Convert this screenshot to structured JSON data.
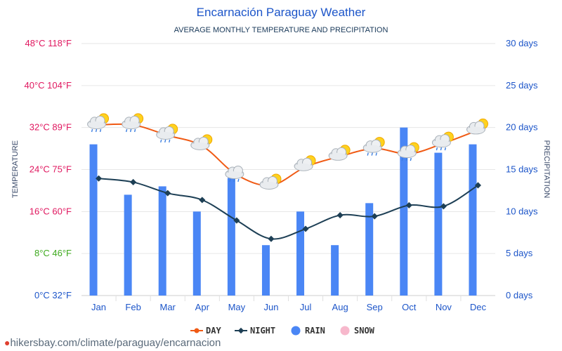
{
  "chart_data": {
    "type": "bar+line",
    "title": "Encarnación Paraguay Weather",
    "subtitle": "AVERAGE MONTHLY TEMPERATURE AND PRECIPITATION",
    "ylabel_left": "TEMPERATURE",
    "ylabel_right": "PRECIPITATION",
    "categories": [
      "Jan",
      "Feb",
      "Mar",
      "Apr",
      "May",
      "Jun",
      "Jul",
      "Aug",
      "Sep",
      "Oct",
      "Nov",
      "Dec"
    ],
    "left_ticks": [
      {
        "value": 48,
        "label": "48°C 118°F",
        "color": "#e0175f"
      },
      {
        "value": 40,
        "label": "40°C 104°F",
        "color": "#e0175f"
      },
      {
        "value": 32,
        "label": "32°C 89°F",
        "color": "#e0175f"
      },
      {
        "value": 24,
        "label": "24°C 75°F",
        "color": "#e0175f"
      },
      {
        "value": 16,
        "label": "16°C 60°F",
        "color": "#e0175f"
      },
      {
        "value": 8,
        "label": "8°C 46°F",
        "color": "#3eaa1e"
      },
      {
        "value": 0,
        "label": "0°C 32°F",
        "color": "#1c55c9"
      }
    ],
    "right_ticks": [
      {
        "value": 30,
        "label": "30 days"
      },
      {
        "value": 25,
        "label": "25 days"
      },
      {
        "value": 20,
        "label": "20 days"
      },
      {
        "value": 15,
        "label": "15 days"
      },
      {
        "value": 10,
        "label": "10 days"
      },
      {
        "value": 5,
        "label": "5 days"
      },
      {
        "value": 0,
        "label": "0 days"
      }
    ],
    "temp_range": [
      0,
      48
    ],
    "precip_range": [
      0,
      30
    ],
    "series": [
      {
        "name": "DAY",
        "kind": "line",
        "unit": "°C",
        "color": "#f05a14",
        "values": [
          32.5,
          32.5,
          30.5,
          28.5,
          23,
          21,
          24.5,
          26.5,
          28,
          27,
          29,
          31.5
        ]
      },
      {
        "name": "NIGHT",
        "kind": "line",
        "unit": "°C",
        "color": "#1d3f55",
        "values": [
          22.3,
          21.6,
          19.5,
          18.2,
          14.3,
          10.8,
          12.7,
          15.3,
          15.1,
          17.2,
          17,
          21
        ]
      },
      {
        "name": "RAIN",
        "kind": "bar",
        "unit": "days",
        "color": "#4a86f5",
        "values": [
          18,
          12,
          13,
          10,
          14,
          6,
          10,
          6,
          11,
          20,
          17,
          18
        ]
      },
      {
        "name": "SNOW",
        "kind": "bar",
        "unit": "days",
        "color": "#f7b8cc",
        "values": [
          0,
          0,
          0,
          0,
          0,
          0,
          0,
          0,
          0,
          0,
          0,
          0
        ]
      }
    ],
    "weather_icons": [
      "sun-cloud-rain",
      "sun-cloud-rain",
      "sun-cloud-rain",
      "sun-cloud",
      "cloud-rain",
      "sun-cloud",
      "sun-cloud",
      "sun-cloud",
      "sun-cloud-rain",
      "sun-cloud-rain",
      "sun-cloud-rain",
      "sun-cloud"
    ],
    "legend": [
      "DAY",
      "NIGHT",
      "RAIN",
      "SNOW"
    ],
    "legend_position": "bottom-center",
    "grid": true
  },
  "colors": {
    "title": "#1c55c9",
    "subtitle": "#1a3a5a",
    "axis_label": "#3a4a6a",
    "month_label": "#1c55c9",
    "right_tick": "#1c55c9",
    "grid": "#e6e6e6"
  },
  "source": {
    "text": "hikersbay.com/climate/paraguay/encarnacion",
    "icon": "location-pin-icon"
  }
}
